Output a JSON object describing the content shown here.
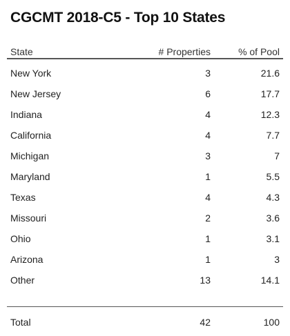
{
  "title": "CGCMT 2018-C5 - Top 10 States",
  "columns": {
    "state": "State",
    "properties": "# Properties",
    "pool": "% of Pool"
  },
  "rows": [
    {
      "state": "New York",
      "properties": "3",
      "pool": "21.6"
    },
    {
      "state": "New Jersey",
      "properties": "6",
      "pool": "17.7"
    },
    {
      "state": "Indiana",
      "properties": "4",
      "pool": "12.3"
    },
    {
      "state": "California",
      "properties": "4",
      "pool": "7.7"
    },
    {
      "state": "Michigan",
      "properties": "3",
      "pool": "7"
    },
    {
      "state": "Maryland",
      "properties": "1",
      "pool": "5.5"
    },
    {
      "state": "Texas",
      "properties": "4",
      "pool": "4.3"
    },
    {
      "state": "Missouri",
      "properties": "2",
      "pool": "3.6"
    },
    {
      "state": "Ohio",
      "properties": "1",
      "pool": "3.1"
    },
    {
      "state": "Arizona",
      "properties": "1",
      "pool": "3"
    },
    {
      "state": "Other",
      "properties": "13",
      "pool": "14.1"
    }
  ],
  "total": {
    "label": "Total",
    "properties": "42",
    "pool": "100"
  }
}
